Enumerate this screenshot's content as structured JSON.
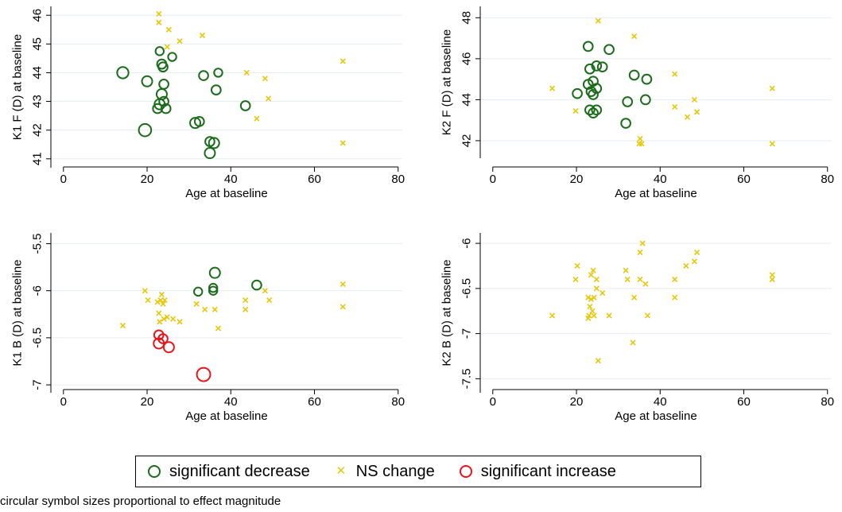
{
  "chart_data": [
    {
      "type": "scatter",
      "ylabel": "K1 F (D) at baseline",
      "xlabel": "Age at baseline",
      "xlim": [
        -3,
        81
      ],
      "ylim": [
        40.8,
        46.2
      ],
      "xticks": [
        0,
        20,
        40,
        60,
        80
      ],
      "yticks": [
        41,
        42,
        43,
        44,
        45,
        46
      ],
      "series": [
        {
          "role": "decrease",
          "color": "#1a6b1a",
          "points": [
            {
              "x": 14.2,
              "y": 44.0,
              "m": 1.1
            },
            {
              "x": 20,
              "y": 43.7,
              "m": 1.0
            },
            {
              "x": 19.5,
              "y": 42.0,
              "m": 1.2
            },
            {
              "x": 23,
              "y": 44.75,
              "m": 0.8
            },
            {
              "x": 23.5,
              "y": 44.3,
              "m": 0.9
            },
            {
              "x": 23.8,
              "y": 44.2,
              "m": 0.9
            },
            {
              "x": 24,
              "y": 43.6,
              "m": 0.9
            },
            {
              "x": 26,
              "y": 44.55,
              "m": 0.8
            },
            {
              "x": 23.5,
              "y": 43.25,
              "m": 1.0
            },
            {
              "x": 24,
              "y": 43.0,
              "m": 0.9
            },
            {
              "x": 23,
              "y": 42.9,
              "m": 1.0
            },
            {
              "x": 22.5,
              "y": 42.75,
              "m": 0.9
            },
            {
              "x": 24.5,
              "y": 42.75,
              "m": 0.9
            },
            {
              "x": 33.5,
              "y": 43.9,
              "m": 0.9
            },
            {
              "x": 37,
              "y": 44.0,
              "m": 0.8
            },
            {
              "x": 36.5,
              "y": 43.4,
              "m": 0.9
            },
            {
              "x": 31.5,
              "y": 42.25,
              "m": 1.0
            },
            {
              "x": 32.5,
              "y": 42.3,
              "m": 0.9
            },
            {
              "x": 43.5,
              "y": 42.85,
              "m": 0.9
            },
            {
              "x": 35,
              "y": 41.6,
              "m": 0.9
            },
            {
              "x": 36,
              "y": 41.55,
              "m": 1.0
            },
            {
              "x": 35,
              "y": 41.2,
              "m": 1.0
            }
          ]
        },
        {
          "role": "ns",
          "color": "#e8c60a",
          "points": [
            {
              "x": 22.8,
              "y": 46.05
            },
            {
              "x": 22.8,
              "y": 45.75
            },
            {
              "x": 25.2,
              "y": 45.5
            },
            {
              "x": 27.8,
              "y": 45.1
            },
            {
              "x": 24.8,
              "y": 44.9
            },
            {
              "x": 33.2,
              "y": 45.3
            },
            {
              "x": 43.8,
              "y": 44.0
            },
            {
              "x": 48.2,
              "y": 43.8
            },
            {
              "x": 49,
              "y": 43.1
            },
            {
              "x": 46.2,
              "y": 42.4
            },
            {
              "x": 66.8,
              "y": 44.4
            },
            {
              "x": 66.8,
              "y": 41.55
            }
          ]
        }
      ]
    },
    {
      "type": "scatter",
      "ylabel": "K2 F (D) at baseline",
      "xlabel": "Age at baseline",
      "xlim": [
        -3,
        81
      ],
      "ylim": [
        41.3,
        48.4
      ],
      "xticks": [
        0,
        20,
        40,
        60,
        80
      ],
      "yticks": [
        42,
        44,
        46,
        48
      ],
      "series": [
        {
          "role": "decrease",
          "color": "#1a6b1a",
          "points": [
            {
              "x": 22.8,
              "y": 46.6,
              "m": 0.9
            },
            {
              "x": 27.8,
              "y": 46.45,
              "m": 0.9
            },
            {
              "x": 23.2,
              "y": 45.5,
              "m": 0.9
            },
            {
              "x": 24.8,
              "y": 45.65,
              "m": 0.9
            },
            {
              "x": 26.2,
              "y": 45.6,
              "m": 0.9
            },
            {
              "x": 20.2,
              "y": 44.3,
              "m": 0.9
            },
            {
              "x": 22.8,
              "y": 44.75,
              "m": 0.9
            },
            {
              "x": 24,
              "y": 44.9,
              "m": 0.9
            },
            {
              "x": 24.8,
              "y": 44.55,
              "m": 0.9
            },
            {
              "x": 23.5,
              "y": 44.4,
              "m": 0.9
            },
            {
              "x": 24,
              "y": 44.25,
              "m": 0.9
            },
            {
              "x": 33.8,
              "y": 45.2,
              "m": 0.9
            },
            {
              "x": 36.8,
              "y": 45.0,
              "m": 0.9
            },
            {
              "x": 32.2,
              "y": 43.9,
              "m": 0.9
            },
            {
              "x": 36.5,
              "y": 44.0,
              "m": 0.9
            },
            {
              "x": 23.2,
              "y": 43.5,
              "m": 0.9
            },
            {
              "x": 24.8,
              "y": 43.5,
              "m": 0.9
            },
            {
              "x": 24,
              "y": 43.35,
              "m": 0.9
            },
            {
              "x": 31.8,
              "y": 42.85,
              "m": 0.9
            }
          ]
        },
        {
          "role": "ns",
          "color": "#e8c60a",
          "points": [
            {
              "x": 25.2,
              "y": 47.85
            },
            {
              "x": 33.8,
              "y": 47.1
            },
            {
              "x": 14.2,
              "y": 44.55
            },
            {
              "x": 19.8,
              "y": 43.45
            },
            {
              "x": 43.5,
              "y": 45.25
            },
            {
              "x": 43.5,
              "y": 43.65
            },
            {
              "x": 46.5,
              "y": 43.15
            },
            {
              "x": 48.2,
              "y": 44.0
            },
            {
              "x": 48.8,
              "y": 43.4
            },
            {
              "x": 66.8,
              "y": 44.55
            },
            {
              "x": 35.2,
              "y": 42.1
            },
            {
              "x": 35.6,
              "y": 41.85
            },
            {
              "x": 35,
              "y": 41.85
            },
            {
              "x": 66.8,
              "y": 41.85
            }
          ]
        }
      ]
    },
    {
      "type": "scatter",
      "ylabel": "K1 B (D) at baseline",
      "xlabel": "Age at baseline",
      "xlim": [
        -3,
        81
      ],
      "ylim": [
        -7.05,
        -5.42
      ],
      "xticks": [
        0,
        20,
        40,
        60,
        80
      ],
      "yticks": [
        -7,
        -6.5,
        -6,
        -5.5
      ],
      "series": [
        {
          "role": "decrease",
          "color": "#1a6b1a",
          "points": [
            {
              "x": 36.2,
              "y": -5.81,
              "m": 1.0
            },
            {
              "x": 46.2,
              "y": -5.94,
              "m": 0.9
            },
            {
              "x": 35.8,
              "y": -5.97,
              "m": 0.8
            },
            {
              "x": 35.8,
              "y": -6.0,
              "m": 0.8
            },
            {
              "x": 32.2,
              "y": -6.01,
              "m": 0.8
            }
          ]
        },
        {
          "role": "ns",
          "color": "#e8c60a",
          "points": [
            {
              "x": 14.2,
              "y": -6.37
            },
            {
              "x": 19.5,
              "y": -6.0
            },
            {
              "x": 20.2,
              "y": -6.1
            },
            {
              "x": 22.5,
              "y": -6.12
            },
            {
              "x": 23.5,
              "y": -6.04
            },
            {
              "x": 23.2,
              "y": -6.1
            },
            {
              "x": 24.2,
              "y": -6.1
            },
            {
              "x": 23.8,
              "y": -6.14
            },
            {
              "x": 22.8,
              "y": -6.24
            },
            {
              "x": 24.8,
              "y": -6.28
            },
            {
              "x": 24,
              "y": -6.3
            },
            {
              "x": 23,
              "y": -6.33
            },
            {
              "x": 26.2,
              "y": -6.3
            },
            {
              "x": 27.8,
              "y": -6.33
            },
            {
              "x": 31.8,
              "y": -6.14
            },
            {
              "x": 33.8,
              "y": -6.2
            },
            {
              "x": 36.2,
              "y": -6.2
            },
            {
              "x": 37,
              "y": -6.4
            },
            {
              "x": 43.5,
              "y": -6.1
            },
            {
              "x": 43.5,
              "y": -6.2
            },
            {
              "x": 48.2,
              "y": -6.0
            },
            {
              "x": 49.2,
              "y": -6.1
            },
            {
              "x": 66.8,
              "y": -5.93
            },
            {
              "x": 66.8,
              "y": -6.17
            }
          ]
        },
        {
          "role": "increase",
          "color": "#e8141a",
          "points": [
            {
              "x": 22.8,
              "y": -6.47,
              "m": 0.9
            },
            {
              "x": 23.8,
              "y": -6.51,
              "m": 0.9
            },
            {
              "x": 22.8,
              "y": -6.56,
              "m": 1.0
            },
            {
              "x": 25.2,
              "y": -6.6,
              "m": 1.0
            },
            {
              "x": 33.5,
              "y": -6.89,
              "m": 1.3
            }
          ]
        }
      ]
    },
    {
      "type": "scatter",
      "ylabel": "K2 B (D) at baseline",
      "xlabel": "Age at baseline",
      "xlim": [
        -3,
        81
      ],
      "ylim": [
        -7.62,
        -5.92
      ],
      "xticks": [
        0,
        20,
        40,
        60,
        80
      ],
      "yticks": [
        -7.5,
        -7,
        -6.5,
        -6
      ],
      "series": [
        {
          "role": "ns",
          "color": "#e8c60a",
          "points": [
            {
              "x": 20.2,
              "y": -6.25
            },
            {
              "x": 19.8,
              "y": -6.4
            },
            {
              "x": 14.2,
              "y": -6.8
            },
            {
              "x": 23.5,
              "y": -6.35
            },
            {
              "x": 24,
              "y": -6.3
            },
            {
              "x": 24.8,
              "y": -6.4
            },
            {
              "x": 24.8,
              "y": -6.5
            },
            {
              "x": 22.8,
              "y": -6.6
            },
            {
              "x": 23.5,
              "y": -6.62
            },
            {
              "x": 24.2,
              "y": -6.6
            },
            {
              "x": 23.2,
              "y": -6.7
            },
            {
              "x": 23.8,
              "y": -6.75
            },
            {
              "x": 23,
              "y": -6.8
            },
            {
              "x": 24.2,
              "y": -6.8
            },
            {
              "x": 22.8,
              "y": -6.83
            },
            {
              "x": 26.2,
              "y": -6.55
            },
            {
              "x": 27.8,
              "y": -6.8
            },
            {
              "x": 31.8,
              "y": -6.3
            },
            {
              "x": 32.2,
              "y": -6.4
            },
            {
              "x": 33.8,
              "y": -6.6
            },
            {
              "x": 33.5,
              "y": -7.1
            },
            {
              "x": 35.2,
              "y": -6.1
            },
            {
              "x": 35.8,
              "y": -6.0
            },
            {
              "x": 35.2,
              "y": -6.4
            },
            {
              "x": 36.5,
              "y": -6.45
            },
            {
              "x": 37,
              "y": -6.8
            },
            {
              "x": 43.5,
              "y": -6.4
            },
            {
              "x": 43.5,
              "y": -6.6
            },
            {
              "x": 46.2,
              "y": -6.25
            },
            {
              "x": 48.2,
              "y": -6.2
            },
            {
              "x": 48.8,
              "y": -6.1
            },
            {
              "x": 66.8,
              "y": -6.35
            },
            {
              "x": 66.8,
              "y": -6.4
            },
            {
              "x": 25.2,
              "y": -7.3
            }
          ]
        }
      ]
    }
  ],
  "legend": {
    "decrease_label": "significant decrease",
    "ns_label": "NS change",
    "increase_label": "significant increase",
    "colors": {
      "decrease": "#1a6b1a",
      "ns": "#e8c60a",
      "increase": "#e8141a"
    }
  },
  "footnote": "circular symbol sizes proportional to effect magnitude"
}
